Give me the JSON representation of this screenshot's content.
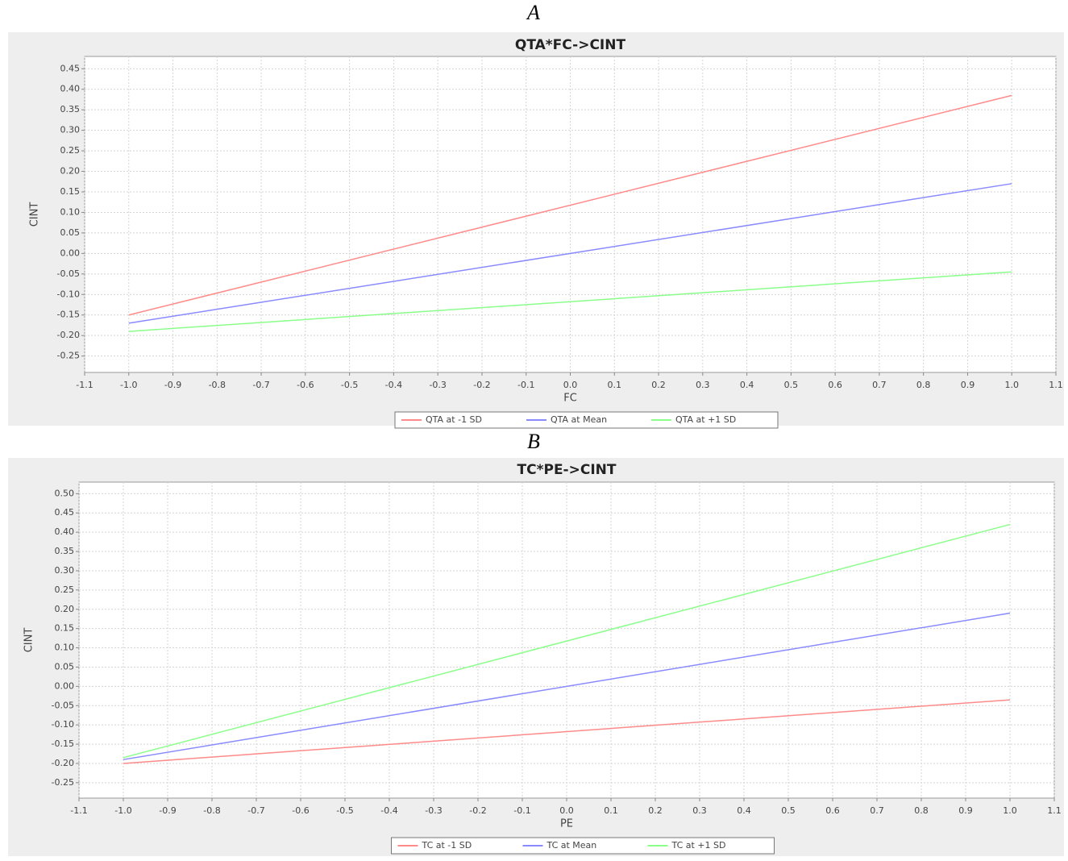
{
  "chart_data": [
    {
      "type": "line",
      "panel_label": "A",
      "title": "QTA*FC->CINT",
      "x_label": "FC",
      "y_label": "CINT",
      "x": [
        -1.0,
        1.0
      ],
      "series": [
        {
          "name": "QTA at -1 SD",
          "color": "#ff8a8a",
          "values": [
            -0.15,
            0.385
          ]
        },
        {
          "name": "QTA at Mean",
          "color": "#8a8aff",
          "values": [
            -0.17,
            0.17
          ]
        },
        {
          "name": "QTA at +1 SD",
          "color": "#8aff8a",
          "values": [
            -0.19,
            -0.045
          ]
        }
      ],
      "xlim": [
        -1.1,
        1.1
      ],
      "xticks": [
        -1.1,
        {
          "value": -1.0,
          "label": "-1.0"
        },
        -0.9,
        -0.8,
        -0.7,
        -0.6,
        -0.5,
        -0.4,
        -0.3,
        -0.2,
        -0.1,
        {
          "value": 0,
          "label": "0.0"
        },
        0.1,
        0.2,
        0.3,
        0.4,
        0.5,
        0.6,
        0.7,
        0.8,
        0.9,
        {
          "value": 1.0,
          "label": "1.0"
        },
        1.1
      ],
      "ylim": [
        -0.29,
        0.48
      ],
      "yticks": [
        -0.25,
        {
          "value": -0.2,
          "label": "-0.20"
        },
        -0.15,
        {
          "value": -0.1,
          "label": "-0.10"
        },
        -0.05,
        {
          "value": 0,
          "label": "0.00"
        },
        0.05,
        {
          "value": 0.1,
          "label": "0.10"
        },
        0.15,
        {
          "value": 0.2,
          "label": "0.20"
        },
        0.25,
        {
          "value": 0.3,
          "label": "0.30"
        },
        0.35,
        {
          "value": 0.4,
          "label": "0.40"
        },
        0.45
      ],
      "grid": true,
      "legend": "bottom"
    },
    {
      "type": "line",
      "panel_label": "B",
      "title": "TC*PE->CINT",
      "x_label": "PE",
      "y_label": "CINT",
      "x": [
        -1.0,
        1.0
      ],
      "series": [
        {
          "name": "TC at -1 SD",
          "color": "#ff8a8a",
          "values": [
            -0.2,
            -0.035
          ]
        },
        {
          "name": "TC at Mean",
          "color": "#8a8aff",
          "values": [
            -0.19,
            0.19
          ]
        },
        {
          "name": "TC at +1 SD",
          "color": "#8aff8a",
          "values": [
            -0.185,
            0.42
          ]
        }
      ],
      "xlim": [
        -1.1,
        1.1
      ],
      "xticks": [
        -1.1,
        {
          "value": -1.0,
          "label": "-1.0"
        },
        -0.9,
        -0.8,
        -0.7,
        -0.6,
        -0.5,
        -0.4,
        -0.3,
        -0.2,
        -0.1,
        {
          "value": 0,
          "label": "0.0"
        },
        0.1,
        0.2,
        0.3,
        0.4,
        0.5,
        0.6,
        0.7,
        0.8,
        0.9,
        {
          "value": 1.0,
          "label": "1.0"
        },
        1.1
      ],
      "ylim": [
        -0.29,
        0.53
      ],
      "yticks": [
        -0.25,
        {
          "value": -0.2,
          "label": "-0.20"
        },
        -0.15,
        {
          "value": -0.1,
          "label": "-0.10"
        },
        -0.05,
        {
          "value": 0,
          "label": "0.00"
        },
        0.05,
        {
          "value": 0.1,
          "label": "0.10"
        },
        0.15,
        {
          "value": 0.2,
          "label": "0.20"
        },
        0.25,
        {
          "value": 0.3,
          "label": "0.30"
        },
        0.35,
        {
          "value": 0.4,
          "label": "0.40"
        },
        0.45,
        {
          "value": 0.5,
          "label": "0.50"
        }
      ],
      "grid": true,
      "legend": "bottom"
    }
  ]
}
